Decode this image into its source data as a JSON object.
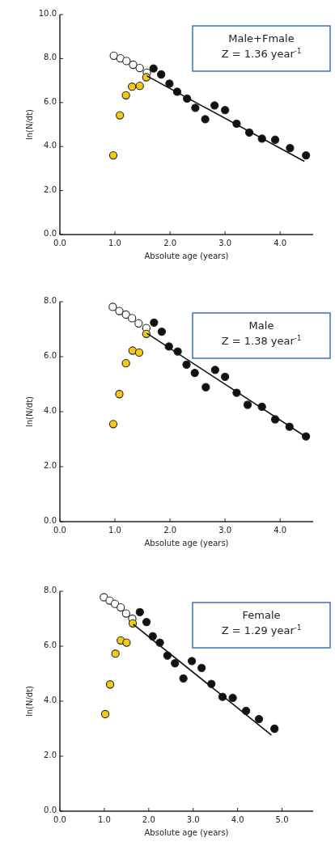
{
  "chart_data": [
    {
      "type": "scatter",
      "xlabel": "Absolute age (years)",
      "ylabel": "ln(N/dt)",
      "annotations": [
        "Male+Fmale",
        "Z = 1.36 year$^{-1}$"
      ],
      "xlim": [
        0,
        4.6
      ],
      "ylim": [
        0,
        10
      ],
      "xticks": [
        {
          "value": 0,
          "label": "0.0"
        },
        {
          "value": 1,
          "label": "1.0"
        },
        {
          "value": 2,
          "label": "2.0"
        },
        {
          "value": 3,
          "label": "3.0"
        },
        {
          "value": 4,
          "label": "4.0"
        }
      ],
      "yticks": [
        {
          "value": 0,
          "label": "0.0"
        },
        {
          "value": 2,
          "label": "2.0"
        },
        {
          "value": 4,
          "label": "4.0"
        },
        {
          "value": 6,
          "label": "6.0"
        },
        {
          "value": 8,
          "label": "8.0"
        },
        {
          "value": 10,
          "label": "10.0"
        }
      ],
      "marker": "circle",
      "series": [
        {
          "color": "#ffffff",
          "x": [
            0.98,
            1.1,
            1.21,
            1.33,
            1.45,
            1.58
          ],
          "values": [
            8.13,
            8.01,
            7.89,
            7.72,
            7.57,
            7.36
          ]
        },
        {
          "color": "#f2c81a",
          "x": [
            0.97,
            1.09,
            1.2,
            1.31,
            1.45,
            1.57
          ],
          "values": [
            3.6,
            5.42,
            6.33,
            6.72,
            6.76,
            7.15
          ]
        },
        {
          "color": "#111111",
          "x": [
            1.7,
            1.84,
            1.99,
            2.13,
            2.31,
            2.46,
            2.64,
            2.81,
            3.0,
            3.21,
            3.44,
            3.67,
            3.91,
            4.18,
            4.47
          ],
          "values": [
            7.55,
            7.28,
            6.86,
            6.49,
            6.18,
            5.76,
            5.24,
            5.87,
            5.66,
            5.04,
            4.64,
            4.36,
            4.31,
            3.93,
            3.6
          ]
        },
        {
          "type": "line",
          "color": "#111111",
          "marker": "none",
          "x": [
            1.58,
            4.44
          ],
          "values": [
            7.21,
            3.33
          ]
        }
      ]
    },
    {
      "type": "scatter",
      "xlabel": "Absolute age (years)",
      "ylabel": "ln(N/dt)",
      "annotations": [
        "Male",
        "Z = 1.38 year$^{-1}$"
      ],
      "xlim": [
        0,
        4.6
      ],
      "ylim": [
        0,
        8
      ],
      "xticks": [
        {
          "value": 0,
          "label": "0.0"
        },
        {
          "value": 1,
          "label": "1.0"
        },
        {
          "value": 2,
          "label": "2.0"
        },
        {
          "value": 3,
          "label": "3.0"
        },
        {
          "value": 4,
          "label": "4.0"
        }
      ],
      "yticks": [
        {
          "value": 0,
          "label": "0.0"
        },
        {
          "value": 2,
          "label": "2.0"
        },
        {
          "value": 4,
          "label": "4.0"
        },
        {
          "value": 6,
          "label": "6.0"
        },
        {
          "value": 8,
          "label": "8.0"
        }
      ],
      "marker": "circle",
      "series": [
        {
          "color": "#ffffff",
          "x": [
            0.96,
            1.08,
            1.2,
            1.31,
            1.43,
            1.57
          ],
          "values": [
            7.81,
            7.66,
            7.53,
            7.4,
            7.21,
            7.04
          ]
        },
        {
          "color": "#f2c81a",
          "x": [
            0.97,
            1.08,
            1.2,
            1.32,
            1.44,
            1.57
          ],
          "values": [
            3.55,
            4.64,
            5.76,
            6.22,
            6.15,
            6.83
          ]
        },
        {
          "color": "#111111",
          "x": [
            1.71,
            1.85,
            1.98,
            2.14,
            2.3,
            2.45,
            2.65,
            2.82,
            3.0,
            3.21,
            3.41,
            3.67,
            3.91,
            4.17,
            4.47
          ],
          "values": [
            7.24,
            6.91,
            6.37,
            6.19,
            5.71,
            5.41,
            4.89,
            5.52,
            5.27,
            4.69,
            4.25,
            4.18,
            3.72,
            3.45,
            3.1
          ]
        },
        {
          "type": "line",
          "color": "#111111",
          "marker": "none",
          "x": [
            1.58,
            4.47
          ],
          "values": [
            6.85,
            3.08
          ]
        }
      ]
    },
    {
      "type": "scatter",
      "xlabel": "Absolute age (years)",
      "ylabel": "ln(N/dt)",
      "annotations": [
        "Female",
        "Z = 1.29 year$^{-1}$"
      ],
      "xlim": [
        0,
        5.7
      ],
      "ylim": [
        0,
        8
      ],
      "xticks": [
        {
          "value": 0,
          "label": "0.0"
        },
        {
          "value": 1,
          "label": "1.0"
        },
        {
          "value": 2,
          "label": "2.0"
        },
        {
          "value": 3,
          "label": "3.0"
        },
        {
          "value": 4,
          "label": "4.0"
        },
        {
          "value": 5,
          "label": "5.0"
        }
      ],
      "yticks": [
        {
          "value": 0,
          "label": "0.0"
        },
        {
          "value": 2,
          "label": "2.0"
        },
        {
          "value": 4,
          "label": "4.0"
        },
        {
          "value": 6,
          "label": "6.0"
        },
        {
          "value": 8,
          "label": "8.0"
        }
      ],
      "marker": "circle",
      "series": [
        {
          "color": "#ffffff",
          "x": [
            0.99,
            1.12,
            1.24,
            1.37,
            1.49,
            1.63
          ],
          "values": [
            7.78,
            7.66,
            7.54,
            7.41,
            7.19,
            7.0
          ]
        },
        {
          "color": "#f2c81a",
          "x": [
            1.02,
            1.13,
            1.25,
            1.37,
            1.5,
            1.64
          ],
          "values": [
            3.53,
            4.61,
            5.73,
            6.21,
            6.13,
            6.83
          ]
        },
        {
          "color": "#111111",
          "x": [
            1.8,
            1.95,
            2.09,
            2.25,
            2.42,
            2.59,
            2.78,
            2.97,
            3.19,
            3.41,
            3.66,
            3.89,
            4.19,
            4.48,
            4.83
          ],
          "values": [
            7.24,
            6.88,
            6.36,
            6.13,
            5.66,
            5.38,
            4.83,
            5.46,
            5.21,
            4.63,
            4.16,
            4.12,
            3.65,
            3.35,
            3.0
          ]
        },
        {
          "type": "line",
          "color": "#111111",
          "marker": "none",
          "x": [
            1.65,
            4.76
          ],
          "values": [
            6.8,
            2.77
          ]
        }
      ]
    }
  ]
}
